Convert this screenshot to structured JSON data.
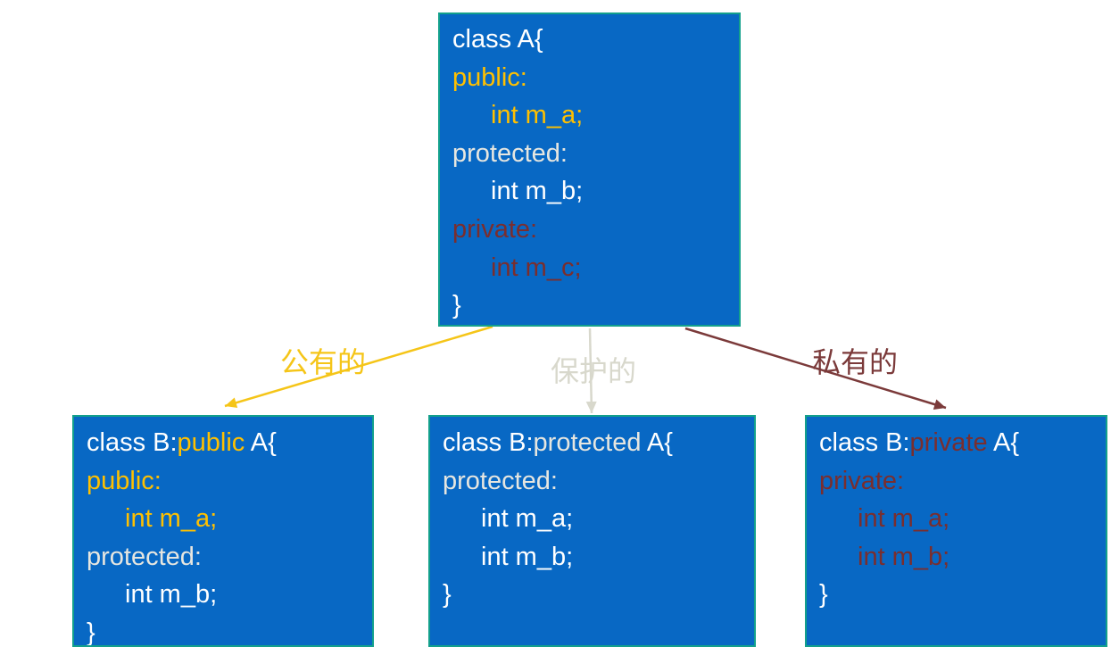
{
  "nodes": [
    {
      "lines": [
        [
          {
            "text": "class A{",
            "color": "#ffffff"
          }
        ],
        [
          {
            "text": "public:",
            "color": "#ffc000"
          }
        ],
        [
          {
            "text": "int m_a;",
            "color": "#ffc000"
          }
        ],
        [
          {
            "text": "protected:",
            "color": "#e6e6e0"
          }
        ],
        [
          {
            "text": "int m_b;",
            "color": "#ffffff"
          }
        ],
        [
          {
            "text": "private:",
            "color": "#7a2e2e"
          }
        ],
        [
          {
            "text": "int m_c;",
            "color": "#7a2e2e"
          }
        ],
        [
          {
            "text": "}",
            "color": "#ffffff"
          }
        ]
      ]
    },
    {
      "lines": [
        [
          {
            "text": "class B:",
            "color": "#ffffff"
          },
          {
            "text": "public",
            "color": "#ffc000"
          },
          {
            "text": " A{",
            "color": "#ffffff"
          }
        ],
        [
          {
            "text": "public:",
            "color": "#ffc000"
          }
        ],
        [
          {
            "text": "int m_a;",
            "color": "#ffc000"
          }
        ],
        [
          {
            "text": "protected:",
            "color": "#e6e6e0"
          }
        ],
        [
          {
            "text": "int m_b;",
            "color": "#ffffff"
          }
        ],
        [
          {
            "text": "}",
            "color": "#ffffff"
          }
        ]
      ]
    },
    {
      "lines": [
        [
          {
            "text": "class B:",
            "color": "#ffffff"
          },
          {
            "text": "protected",
            "color": "#e6e6e0"
          },
          {
            "text": " A{",
            "color": "#ffffff"
          }
        ],
        [
          {
            "text": "protected:",
            "color": "#e6e6e0"
          }
        ],
        [
          {
            "text": "int m_a;",
            "color": "#ffffff"
          }
        ],
        [
          {
            "text": "int m_b;",
            "color": "#ffffff"
          }
        ],
        [
          {
            "text": "}",
            "color": "#ffffff"
          }
        ]
      ]
    },
    {
      "lines": [
        [
          {
            "text": "class B:",
            "color": "#ffffff"
          },
          {
            "text": "private",
            "color": "#7a2e2e"
          },
          {
            "text": " A{",
            "color": "#ffffff"
          }
        ],
        [
          {
            "text": "private:",
            "color": "#7a2e2e"
          }
        ],
        [
          {
            "text": "int m_a;",
            "color": "#7a2e2e"
          }
        ],
        [
          {
            "text": "int m_b;",
            "color": "#7a2e2e"
          }
        ],
        [
          {
            "text": "}",
            "color": "#ffffff"
          }
        ]
      ]
    }
  ],
  "edges": [
    {
      "label": "公有的",
      "color": "#f5c518"
    },
    {
      "label": "保护的",
      "color": "#d8d8cc"
    },
    {
      "label": "私有的",
      "color": "#7b3a3a"
    }
  ]
}
